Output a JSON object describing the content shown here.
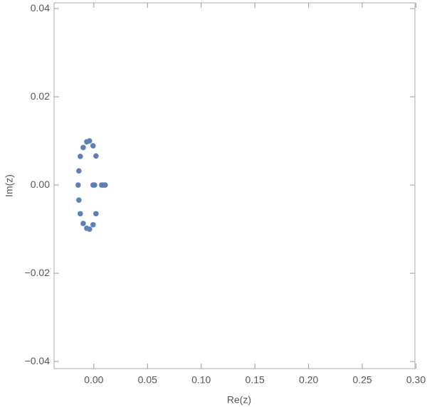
{
  "chart_data": {
    "type": "scatter",
    "x_label": "Re(z)",
    "y_label": "Im(z)",
    "series": [
      {
        "color": "#5e81b5",
        "x": [
          -0.0146,
          -0.0139,
          -0.0139,
          -0.0126,
          -0.0126,
          -0.0099,
          -0.0099,
          -0.0066,
          -0.0066,
          -0.004,
          -0.004,
          -0.0007,
          -0.0007,
          0.002,
          0.002,
          -0.0007,
          0.0007,
          0.0073,
          0.0093,
          0.0106
        ],
        "values": [
          0,
          0.0032,
          -0.0034,
          0.0065,
          -0.0065,
          0.0085,
          -0.0087,
          0.0098,
          -0.0098,
          0.01,
          -0.01,
          0.0089,
          -0.009,
          0.0066,
          -0.0065,
          0,
          0,
          0,
          0,
          0
        ]
      }
    ],
    "xlim": [
      -0.037,
      0.299
    ],
    "ylim": [
      -0.0416,
      0.0413
    ],
    "xticks": [
      {
        "value": 0,
        "label": "0.00"
      },
      {
        "value": 0.05,
        "label": "0.05"
      },
      {
        "value": 0.1,
        "label": "0.10"
      },
      {
        "value": 0.15,
        "label": "0.15"
      },
      {
        "value": 0.2,
        "label": "0.20"
      },
      {
        "value": 0.25,
        "label": "0.25"
      },
      {
        "value": 0.3,
        "label": "0.30"
      }
    ],
    "yticks": [
      {
        "value": -0.04,
        "label": "−0.04"
      },
      {
        "value": -0.02,
        "label": "−0.02"
      },
      {
        "value": 0,
        "label": "0.00"
      },
      {
        "value": 0.02,
        "label": "0.02"
      },
      {
        "value": 0.04,
        "label": "0.04"
      }
    ]
  }
}
